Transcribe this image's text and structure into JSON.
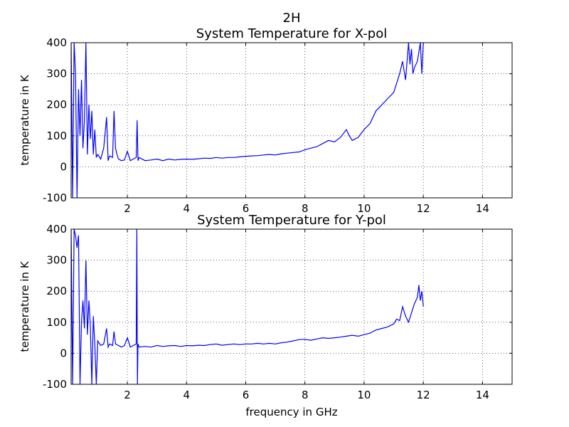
{
  "figure": {
    "title": "2H"
  },
  "chart_data": [
    {
      "type": "line",
      "title": "System Temperature for X-pol",
      "xlabel": "",
      "ylabel": "temperature in K",
      "xlim": [
        0.1,
        15
      ],
      "ylim": [
        -100,
        400
      ],
      "xticks": [
        2,
        4,
        6,
        8,
        10,
        12,
        14
      ],
      "yticks": [
        -100,
        0,
        100,
        200,
        300,
        400
      ],
      "grid": true,
      "color": "#0000ff",
      "series": [
        {
          "x": [
            0.1,
            0.15,
            0.2,
            0.25,
            0.3,
            0.35,
            0.4,
            0.45,
            0.5,
            0.55,
            0.6,
            0.65,
            0.7,
            0.75,
            0.8,
            0.85,
            0.9,
            0.95,
            1.0,
            1.1,
            1.2,
            1.3,
            1.35,
            1.4,
            1.5,
            1.55,
            1.6,
            1.65,
            1.7,
            1.8,
            1.9,
            2.0,
            2.1,
            2.2,
            2.3,
            2.33,
            2.36,
            2.4,
            2.6,
            2.8,
            3.0,
            3.2,
            3.4,
            3.6,
            3.8,
            4.0,
            4.2,
            4.4,
            4.6,
            4.8,
            5.0,
            5.2,
            5.4,
            5.6,
            5.8,
            6.0,
            6.2,
            6.4,
            6.6,
            6.8,
            7.0,
            7.2,
            7.4,
            7.6,
            7.8,
            8.0,
            8.2,
            8.4,
            8.6,
            8.8,
            9.0,
            9.2,
            9.4,
            9.5,
            9.6,
            9.8,
            10.0,
            10.2,
            10.4,
            10.6,
            10.8,
            11.0,
            11.2,
            11.3,
            11.4,
            11.5,
            11.55,
            11.6,
            11.65,
            11.7,
            11.8,
            11.9,
            11.95,
            12.0
          ],
          "y": [
            400,
            -100,
            400,
            300,
            -100,
            250,
            100,
            280,
            60,
            150,
            400,
            40,
            200,
            90,
            180,
            40,
            120,
            30,
            40,
            25,
            60,
            160,
            20,
            35,
            30,
            180,
            60,
            40,
            25,
            20,
            22,
            50,
            20,
            25,
            30,
            150,
            20,
            30,
            20,
            22,
            25,
            20,
            25,
            22,
            24,
            25,
            24,
            26,
            28,
            27,
            30,
            28,
            30,
            30,
            32,
            34,
            35,
            36,
            38,
            40,
            38,
            42,
            44,
            46,
            48,
            55,
            60,
            65,
            75,
            85,
            80,
            95,
            120,
            100,
            85,
            95,
            120,
            140,
            180,
            200,
            220,
            240,
            300,
            340,
            280,
            400,
            330,
            380,
            300,
            320,
            340,
            400,
            300,
            400
          ]
        }
      ]
    },
    {
      "type": "line",
      "title": "System Temperature for Y-pol",
      "xlabel": "frequency in GHz",
      "ylabel": "temperature in K",
      "xlim": [
        0.1,
        15
      ],
      "ylim": [
        -100,
        400
      ],
      "xticks": [
        2,
        4,
        6,
        8,
        10,
        12,
        14
      ],
      "yticks": [
        -100,
        0,
        100,
        200,
        300,
        400
      ],
      "grid": true,
      "color": "#0000ff",
      "series": [
        {
          "x": [
            0.1,
            0.15,
            0.2,
            0.25,
            0.3,
            0.35,
            0.4,
            0.45,
            0.5,
            0.55,
            0.6,
            0.65,
            0.7,
            0.75,
            0.8,
            0.85,
            0.9,
            0.95,
            1.0,
            1.1,
            1.2,
            1.3,
            1.35,
            1.4,
            1.5,
            1.55,
            1.6,
            1.7,
            1.8,
            1.9,
            2.0,
            2.1,
            2.2,
            2.3,
            2.32,
            2.34,
            2.36,
            2.4,
            2.6,
            2.8,
            3.0,
            3.2,
            3.4,
            3.6,
            3.8,
            4.0,
            4.2,
            4.4,
            4.6,
            4.8,
            5.0,
            5.2,
            5.4,
            5.6,
            5.8,
            6.0,
            6.2,
            6.4,
            6.6,
            6.8,
            7.0,
            7.2,
            7.4,
            7.6,
            7.8,
            8.0,
            8.2,
            8.4,
            8.6,
            8.8,
            9.0,
            9.2,
            9.4,
            9.6,
            9.8,
            10.0,
            10.2,
            10.4,
            10.6,
            10.8,
            11.0,
            11.1,
            11.2,
            11.3,
            11.4,
            11.5,
            11.6,
            11.7,
            11.8,
            11.85,
            11.9,
            11.95,
            12.0
          ],
          "y": [
            400,
            -100,
            400,
            380,
            340,
            380,
            -100,
            100,
            170,
            80,
            300,
            60,
            170,
            90,
            -100,
            120,
            30,
            -100,
            40,
            25,
            30,
            80,
            20,
            30,
            25,
            70,
            30,
            25,
            20,
            25,
            50,
            20,
            25,
            30,
            400,
            -100,
            30,
            20,
            22,
            20,
            25,
            22,
            24,
            25,
            22,
            25,
            24,
            26,
            25,
            28,
            30,
            26,
            28,
            30,
            28,
            30,
            30,
            32,
            30,
            32,
            30,
            34,
            36,
            40,
            44,
            45,
            42,
            46,
            50,
            48,
            50,
            52,
            55,
            58,
            55,
            60,
            65,
            75,
            80,
            85,
            95,
            110,
            105,
            150,
            120,
            100,
            130,
            160,
            180,
            220,
            170,
            200,
            150
          ]
        }
      ]
    }
  ]
}
